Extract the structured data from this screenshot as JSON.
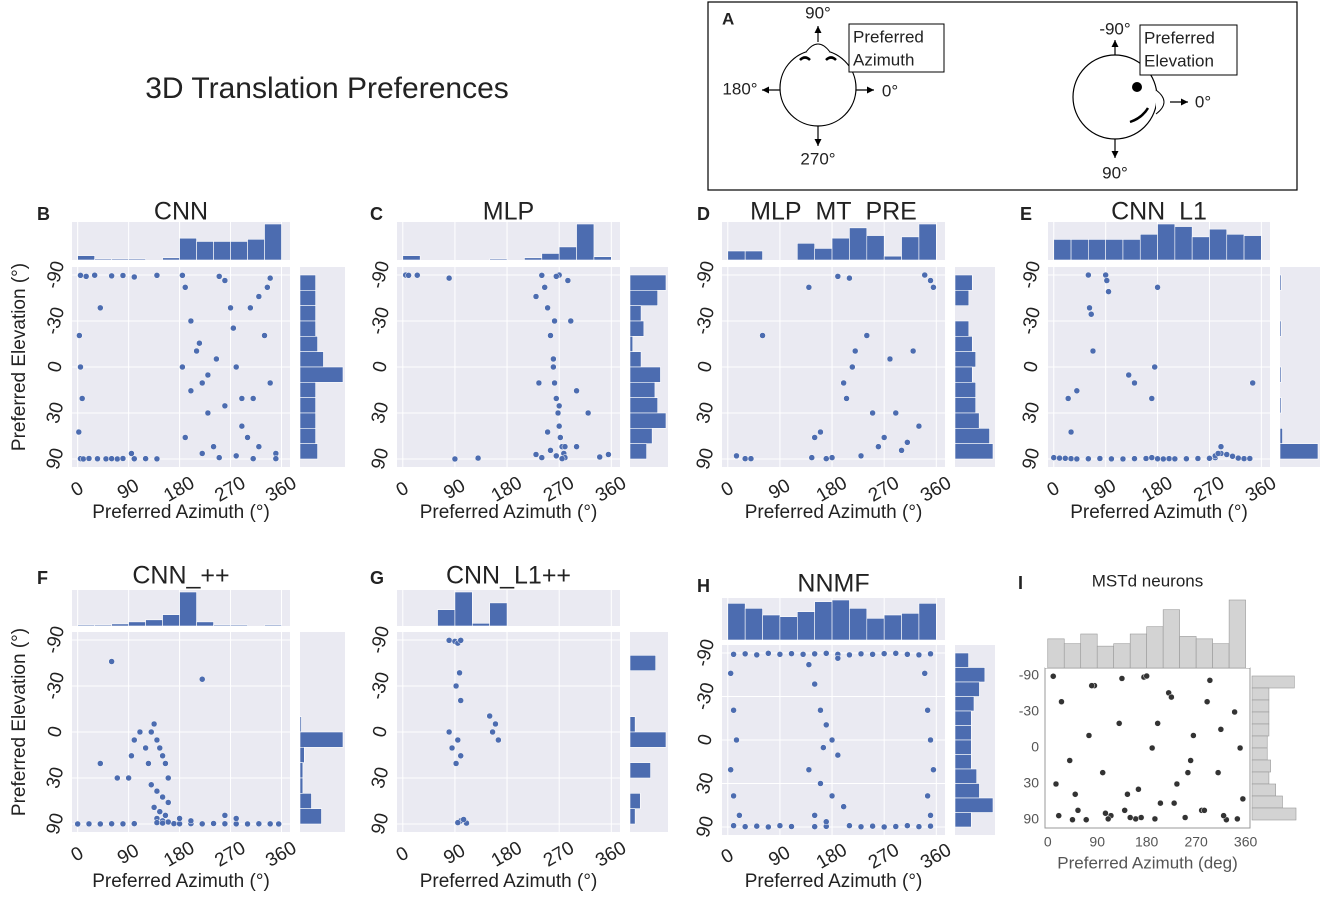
{
  "title": "3D Translation Preferences",
  "diagram": {
    "label": "A",
    "azimuth": {
      "top": "90°",
      "left": "180°",
      "right": "0°",
      "bottom": "270°",
      "caption": [
        "Preferred",
        "Azimuth"
      ]
    },
    "elevation": {
      "top": "-90°",
      "right": "0°",
      "bottom": "90°",
      "caption": [
        "Preferred",
        "Elevation"
      ]
    }
  },
  "chart_data": [
    {
      "type": "scatter",
      "panel": "B",
      "title": "CNN",
      "xlabel": "Preferred Azimuth (°)",
      "ylabel": "Preferred Elevation (°)",
      "xlim": [
        -10,
        375
      ],
      "xticks": [
        0,
        90,
        180,
        270,
        360
      ],
      "ylim": [
        -90,
        90
      ],
      "yticks": [
        -90,
        -30,
        0,
        30,
        90
      ],
      "yscale": "sine",
      "y_inverted": true,
      "color": "#4c6cb0",
      "hist_color": "#4c6cb0",
      "background": "#eaeaf2",
      "grid": true,
      "x": [
        5,
        10,
        20,
        35,
        50,
        60,
        70,
        80,
        100,
        120,
        140,
        5,
        15,
        30,
        60,
        80,
        100,
        140,
        3,
        5,
        8,
        2,
        40,
        95,
        185,
        190,
        200,
        210,
        220,
        230,
        240,
        250,
        260,
        270,
        280,
        290,
        300,
        310,
        320,
        330,
        340,
        350,
        185,
        200,
        215,
        230,
        245,
        260,
        275,
        290,
        305,
        320,
        335,
        350,
        190,
        220,
        250,
        280,
        310,
        340
      ],
      "y": [
        85,
        88,
        84,
        86,
        87,
        85,
        88,
        84,
        86,
        85,
        87,
        -85,
        -80,
        -86,
        -82,
        -84,
        -78,
        -85,
        -20,
        0,
        20,
        45,
        -40,
        70,
        -85,
        -60,
        -30,
        -10,
        10,
        30,
        60,
        80,
        -70,
        -40,
        0,
        20,
        50,
        85,
        -50,
        -20,
        10,
        70,
        0,
        15,
        -15,
        5,
        -5,
        25,
        -25,
        40,
        -40,
        60,
        -60,
        85,
        50,
        70,
        -80,
        75,
        20,
        -75
      ],
      "x_bins": [
        0,
        30,
        60,
        90,
        120,
        150,
        180,
        210,
        240,
        270,
        300,
        330,
        360
      ],
      "x_hist": [
        4,
        1,
        1,
        1,
        0,
        2,
        20,
        17,
        17,
        17,
        19,
        33
      ],
      "y_bins": [
        -90,
        -75,
        -60,
        -45,
        -30,
        -15,
        0,
        15,
        30,
        45,
        60,
        75,
        90
      ],
      "y_hist": [
        8,
        8,
        8,
        8,
        9,
        12,
        22,
        8,
        8,
        8,
        8,
        9
      ]
    },
    {
      "type": "scatter",
      "panel": "C",
      "title": "MLP",
      "xlabel": "Preferred Azimuth (°)",
      "xlim": [
        -10,
        375
      ],
      "xticks": [
        0,
        90,
        180,
        270,
        360
      ],
      "ylim": [
        -90,
        90
      ],
      "yticks": [
        -90,
        -30,
        0,
        30,
        90
      ],
      "yscale": "sine",
      "y_inverted": true,
      "color": "#4c6cb0",
      "hist_color": "#4c6cb0",
      "background": "#eaeaf2",
      "grid": true,
      "x": [
        5,
        10,
        25,
        80,
        90,
        130,
        240,
        245,
        250,
        255,
        260,
        262,
        265,
        268,
        270,
        272,
        275,
        278,
        280,
        285,
        290,
        230,
        235,
        255,
        265,
        275,
        260,
        270,
        250,
        280,
        300,
        320,
        340,
        230,
        240,
        300,
        355,
        270,
        265,
        262
      ],
      "y": [
        -88,
        -85,
        -86,
        -75,
        88,
        82,
        -85,
        -60,
        -40,
        -20,
        0,
        10,
        20,
        30,
        40,
        50,
        60,
        70,
        80,
        -70,
        -30,
        -50,
        10,
        65,
        75,
        85,
        -5,
        25,
        45,
        60,
        15,
        30,
        78,
        72,
        80,
        60,
        72,
        -88,
        -80,
        -30
      ],
      "x_bins": [
        0,
        30,
        60,
        90,
        120,
        150,
        180,
        210,
        240,
        270,
        300,
        330,
        360
      ],
      "x_hist": [
        4,
        0,
        0,
        0,
        0,
        1,
        0,
        2,
        6,
        12,
        33,
        3
      ],
      "y_bins": [
        -90,
        -75,
        -60,
        -45,
        -30,
        -15,
        0,
        15,
        30,
        45,
        60,
        75,
        90
      ],
      "y_hist": [
        26,
        20,
        8,
        10,
        2,
        8,
        22,
        18,
        20,
        26,
        16,
        12
      ]
    },
    {
      "type": "scatter",
      "panel": "D",
      "title": "MLP_MT_PRE",
      "xlabel": "Preferred Azimuth (°)",
      "xlim": [
        -10,
        375
      ],
      "xticks": [
        0,
        90,
        180,
        270,
        360
      ],
      "ylim": [
        -90,
        90
      ],
      "yticks": [
        -90,
        -30,
        0,
        30,
        90
      ],
      "yscale": "sine",
      "y_inverted": true,
      "color": "#4c6cb0",
      "hist_color": "#4c6cb0",
      "background": "#eaeaf2",
      "grid": true,
      "x": [
        15,
        30,
        40,
        60,
        140,
        145,
        160,
        190,
        200,
        210,
        215,
        220,
        240,
        250,
        260,
        270,
        280,
        300,
        310,
        320,
        330,
        340,
        350,
        355,
        180,
        230,
        150,
        290,
        170,
        205
      ],
      "y": [
        75,
        85,
        85,
        -20,
        -60,
        80,
        45,
        -80,
        10,
        -75,
        0,
        -10,
        -20,
        30,
        60,
        50,
        -5,
        65,
        55,
        -10,
        40,
        -88,
        -70,
        -60,
        80,
        75,
        50,
        30,
        85,
        20
      ],
      "x_bins": [
        0,
        30,
        60,
        90,
        120,
        150,
        180,
        210,
        240,
        270,
        300,
        330,
        360
      ],
      "x_hist": [
        7,
        7,
        0,
        0,
        13,
        9,
        17,
        25,
        19,
        3,
        18,
        28
      ],
      "y_bins": [
        -90,
        -75,
        -60,
        -45,
        -30,
        -15,
        0,
        15,
        30,
        45,
        60,
        75,
        90
      ],
      "y_hist": [
        10,
        8,
        0,
        8,
        10,
        12,
        10,
        12,
        12,
        14,
        20,
        22
      ]
    },
    {
      "type": "scatter",
      "panel": "E",
      "title": "CNN_L1",
      "xlabel": "Preferred Azimuth (°)",
      "xlim": [
        -10,
        375
      ],
      "xticks": [
        0,
        90,
        180,
        270,
        360
      ],
      "ylim": [
        -90,
        90
      ],
      "yticks": [
        -90,
        -30,
        0,
        30,
        90
      ],
      "yscale": "sine",
      "y_inverted": true,
      "color": "#4c6cb0",
      "hist_color": "#4c6cb0",
      "background": "#eaeaf2",
      "grid": true,
      "x": [
        0,
        10,
        20,
        30,
        40,
        60,
        80,
        100,
        120,
        140,
        160,
        170,
        180,
        190,
        200,
        210,
        230,
        250,
        270,
        280,
        290,
        300,
        310,
        320,
        330,
        340,
        60,
        62,
        65,
        68,
        90,
        92,
        95,
        25,
        40,
        30,
        175,
        170,
        130,
        140,
        280,
        285,
        290,
        180,
        345
      ],
      "y": [
        80,
        82,
        83,
        85,
        88,
        86,
        84,
        87,
        88,
        85,
        84,
        80,
        86,
        88,
        85,
        87,
        86,
        84,
        83,
        80,
        70,
        72,
        76,
        82,
        85,
        84,
        -88,
        -40,
        -35,
        -10,
        -88,
        -70,
        -55,
        20,
        15,
        45,
        0,
        20,
        5,
        10,
        75,
        70,
        60,
        -60,
        10
      ],
      "x_bins": [
        0,
        30,
        60,
        90,
        120,
        150,
        180,
        210,
        240,
        270,
        300,
        330,
        360
      ],
      "x_hist": [
        16,
        16,
        16,
        16,
        16,
        20,
        28,
        26,
        18,
        24,
        20,
        19
      ],
      "y_bins": [
        -90,
        -75,
        -60,
        -45,
        -30,
        -15,
        0,
        15,
        30,
        45,
        60,
        75,
        90
      ],
      "y_hist": [
        1,
        0,
        0,
        1,
        0,
        0,
        1,
        0,
        1,
        0,
        2,
        30
      ]
    },
    {
      "type": "scatter",
      "panel": "F",
      "title": "CNN_++",
      "xlabel": "Preferred Azimuth (°)",
      "ylabel": "Preferred Elevation (°)",
      "xlim": [
        -10,
        375
      ],
      "xticks": [
        0,
        90,
        180,
        270,
        360
      ],
      "ylim": [
        -90,
        90
      ],
      "yticks": [
        -90,
        -30,
        0,
        30,
        90
      ],
      "yscale": "sine",
      "y_inverted": true,
      "color": "#4c6cb0",
      "hist_color": "#4c6cb0",
      "background": "#eaeaf2",
      "grid": true,
      "x": [
        130,
        135,
        140,
        145,
        150,
        155,
        160,
        130,
        140,
        150,
        160,
        135,
        145,
        155,
        140,
        150,
        120,
        125,
        110,
        100,
        95,
        90,
        140,
        150,
        160,
        170,
        0,
        20,
        40,
        60,
        80,
        100,
        180,
        200,
        220,
        240,
        260,
        280,
        300,
        320,
        340,
        355,
        60,
        40,
        70,
        220,
        180,
        200,
        260,
        280
      ],
      "y": [
        0,
        -5,
        5,
        10,
        15,
        20,
        30,
        35,
        40,
        45,
        50,
        55,
        60,
        65,
        70,
        75,
        10,
        20,
        0,
        5,
        15,
        30,
        80,
        82,
        78,
        85,
        88,
        87,
        88,
        86,
        87,
        85,
        86,
        85,
        87,
        84,
        86,
        87,
        88,
        86,
        87,
        88,
        -50,
        20,
        30,
        -35,
        70,
        75,
        65,
        70
      ],
      "x_bins": [
        0,
        30,
        60,
        90,
        120,
        150,
        180,
        210,
        240,
        270,
        300,
        330,
        360
      ],
      "x_hist": [
        1,
        1,
        2,
        4,
        6,
        11,
        33,
        4,
        1,
        1,
        0,
        1
      ],
      "y_bins": [
        -90,
        -75,
        -60,
        -45,
        -30,
        -15,
        0,
        15,
        30,
        45,
        60,
        75,
        90
      ],
      "y_hist": [
        0,
        0,
        0,
        0,
        0,
        1,
        30,
        3,
        2,
        2,
        8,
        15
      ]
    },
    {
      "type": "scatter",
      "panel": "G",
      "title": "CNN_L1++",
      "xlabel": "Preferred Azimuth (°)",
      "xlim": [
        -10,
        375
      ],
      "xticks": [
        0,
        90,
        180,
        270,
        360
      ],
      "ylim": [
        -90,
        90
      ],
      "yticks": [
        -90,
        -30,
        0,
        30,
        90
      ],
      "yscale": "sine",
      "y_inverted": true,
      "color": "#4c6cb0",
      "hist_color": "#4c6cb0",
      "background": "#eaeaf2",
      "grid": true,
      "x": [
        80,
        90,
        95,
        100,
        98,
        92,
        100,
        95,
        100,
        80,
        85,
        92,
        100,
        95,
        110,
        105,
        150,
        155,
        165,
        160
      ],
      "y": [
        -85,
        -80,
        -75,
        -85,
        -40,
        -30,
        -20,
        5,
        15,
        0,
        10,
        20,
        75,
        80,
        82,
        72,
        -10,
        0,
        5,
        -5
      ],
      "x_bins": [
        0,
        30,
        60,
        90,
        120,
        150,
        180,
        210,
        240,
        270,
        300,
        330,
        360
      ],
      "x_hist": [
        0,
        0,
        12,
        25,
        2,
        17,
        0,
        0,
        0,
        0,
        0,
        0
      ],
      "y_bins": [
        -90,
        -75,
        -60,
        -45,
        -30,
        -15,
        0,
        15,
        30,
        45,
        60,
        75,
        90
      ],
      "y_hist": [
        0,
        10,
        0,
        0,
        0,
        2,
        14,
        0,
        8,
        0,
        4,
        2
      ]
    },
    {
      "type": "scatter",
      "panel": "H",
      "title": "NNMF",
      "xlabel": "Preferred Azimuth (°)",
      "xlim": [
        -10,
        375
      ],
      "xticks": [
        0,
        90,
        180,
        270,
        360
      ],
      "ylim": [
        -90,
        90
      ],
      "yticks": [
        -90,
        -30,
        0,
        30,
        90
      ],
      "yscale": "sine",
      "y_inverted": true,
      "color": "#4c6cb0",
      "hist_color": "#4c6cb0",
      "background": "#eaeaf2",
      "grid": true,
      "x": [
        10,
        30,
        50,
        70,
        90,
        110,
        130,
        150,
        170,
        190,
        210,
        230,
        250,
        270,
        290,
        310,
        330,
        350,
        10,
        30,
        50,
        70,
        90,
        110,
        150,
        170,
        210,
        230,
        250,
        270,
        290,
        310,
        330,
        350,
        5,
        10,
        15,
        5,
        10,
        20,
        340,
        345,
        350,
        355,
        345,
        350,
        140,
        150,
        160,
        170,
        180,
        190,
        140,
        160,
        180,
        200,
        150,
        170,
        190,
        165
      ],
      "y": [
        -80,
        -82,
        -78,
        -85,
        -80,
        -83,
        -80,
        -82,
        -85,
        -80,
        -78,
        -82,
        -80,
        -83,
        -85,
        -80,
        -78,
        -82,
        80,
        85,
        82,
        88,
        80,
        84,
        85,
        83,
        80,
        86,
        82,
        88,
        84,
        80,
        85,
        82,
        -50,
        -20,
        0,
        20,
        40,
        60,
        -50,
        -20,
        0,
        20,
        40,
        60,
        -60,
        -40,
        -20,
        -10,
        0,
        10,
        20,
        30,
        40,
        50,
        60,
        70,
        -70,
        5
      ],
      "x_bins": [
        0,
        30,
        60,
        90,
        120,
        150,
        180,
        210,
        240,
        270,
        300,
        330,
        360
      ],
      "x_hist": [
        22,
        19,
        15,
        14,
        17,
        23,
        24,
        19,
        13,
        15,
        16,
        22
      ],
      "y_bins": [
        -90,
        -75,
        -60,
        -45,
        -30,
        -15,
        0,
        15,
        30,
        45,
        60,
        75,
        90
      ],
      "y_hist": [
        10,
        22,
        18,
        14,
        12,
        12,
        12,
        12,
        16,
        18,
        28,
        12
      ]
    },
    {
      "type": "scatter",
      "panel": "I",
      "title": "MSTd neurons",
      "xlabel": "Preferred Azimuth (deg)",
      "xlim": [
        -5,
        368
      ],
      "xticks": [
        0,
        90,
        180,
        270,
        360
      ],
      "ylim": [
        -90,
        90
      ],
      "yticks": [
        -90,
        -30,
        0,
        30,
        90
      ],
      "yscale": "sine",
      "y_inverted": true,
      "color": "#333333",
      "hist_color": "#d3d3d3",
      "background": "#ffffff",
      "grid": false,
      "x": [
        10,
        25,
        40,
        55,
        70,
        85,
        100,
        115,
        130,
        145,
        160,
        175,
        190,
        205,
        220,
        235,
        250,
        265,
        280,
        295,
        310,
        325,
        340,
        355,
        20,
        50,
        80,
        110,
        140,
        170,
        200,
        230,
        260,
        290,
        320,
        350,
        15,
        45,
        75,
        105,
        135,
        165,
        195,
        225,
        255,
        285,
        315,
        345,
        180,
        150
      ],
      "y": [
        -85,
        -40,
        10,
        60,
        85,
        -60,
        20,
        70,
        -20,
        40,
        80,
        -80,
        0,
        50,
        -50,
        30,
        75,
        -10,
        60,
        -70,
        20,
        85,
        -30,
        45,
        70,
        40,
        -60,
        80,
        60,
        75,
        -20,
        50,
        10,
        -40,
        70,
        0,
        30,
        85,
        -10,
        65,
        -75,
        35,
        80,
        -45,
        20,
        60,
        -15,
        80,
        -88,
        75
      ],
      "x_bins": [
        0,
        30,
        60,
        90,
        120,
        150,
        180,
        210,
        240,
        270,
        300,
        330,
        360
      ],
      "x_hist": [
        12,
        10,
        14,
        9,
        10,
        14,
        17,
        24,
        13,
        12,
        10,
        28
      ],
      "y_bins": [
        -90,
        -75,
        -60,
        -45,
        -30,
        -15,
        0,
        15,
        30,
        45,
        60,
        75,
        90
      ],
      "y_hist": [
        25,
        10,
        10,
        10,
        10,
        9,
        9,
        11,
        10,
        14,
        18,
        26
      ]
    }
  ]
}
